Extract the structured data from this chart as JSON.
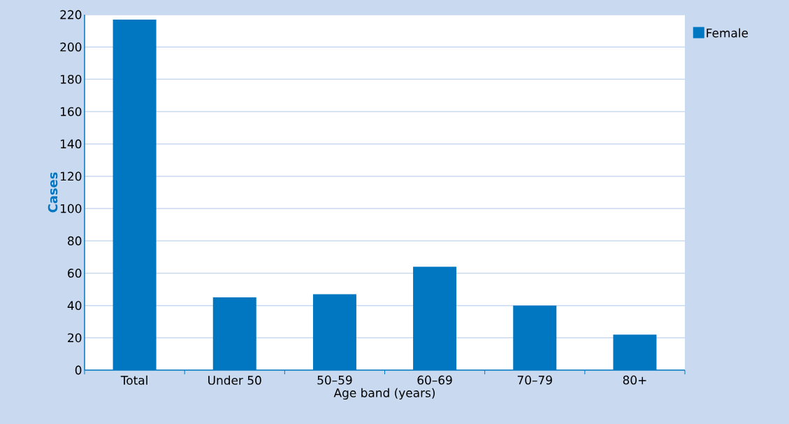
{
  "chart_data": {
    "type": "bar",
    "xlabel": "Age band (years)",
    "ylabel": "Cases",
    "categories": [
      "Total",
      "Under 50",
      "50–59",
      "60–69",
      "70–79",
      "80+"
    ],
    "series": [
      {
        "name": "Female",
        "color": "#0077c0",
        "values": [
          217,
          45,
          47,
          64,
          40,
          22
        ]
      }
    ],
    "ylim": [
      0,
      220
    ],
    "yticks": [
      0,
      20,
      40,
      60,
      80,
      100,
      120,
      140,
      160,
      180,
      200,
      220
    ],
    "grid": "y",
    "legend": "top right"
  }
}
